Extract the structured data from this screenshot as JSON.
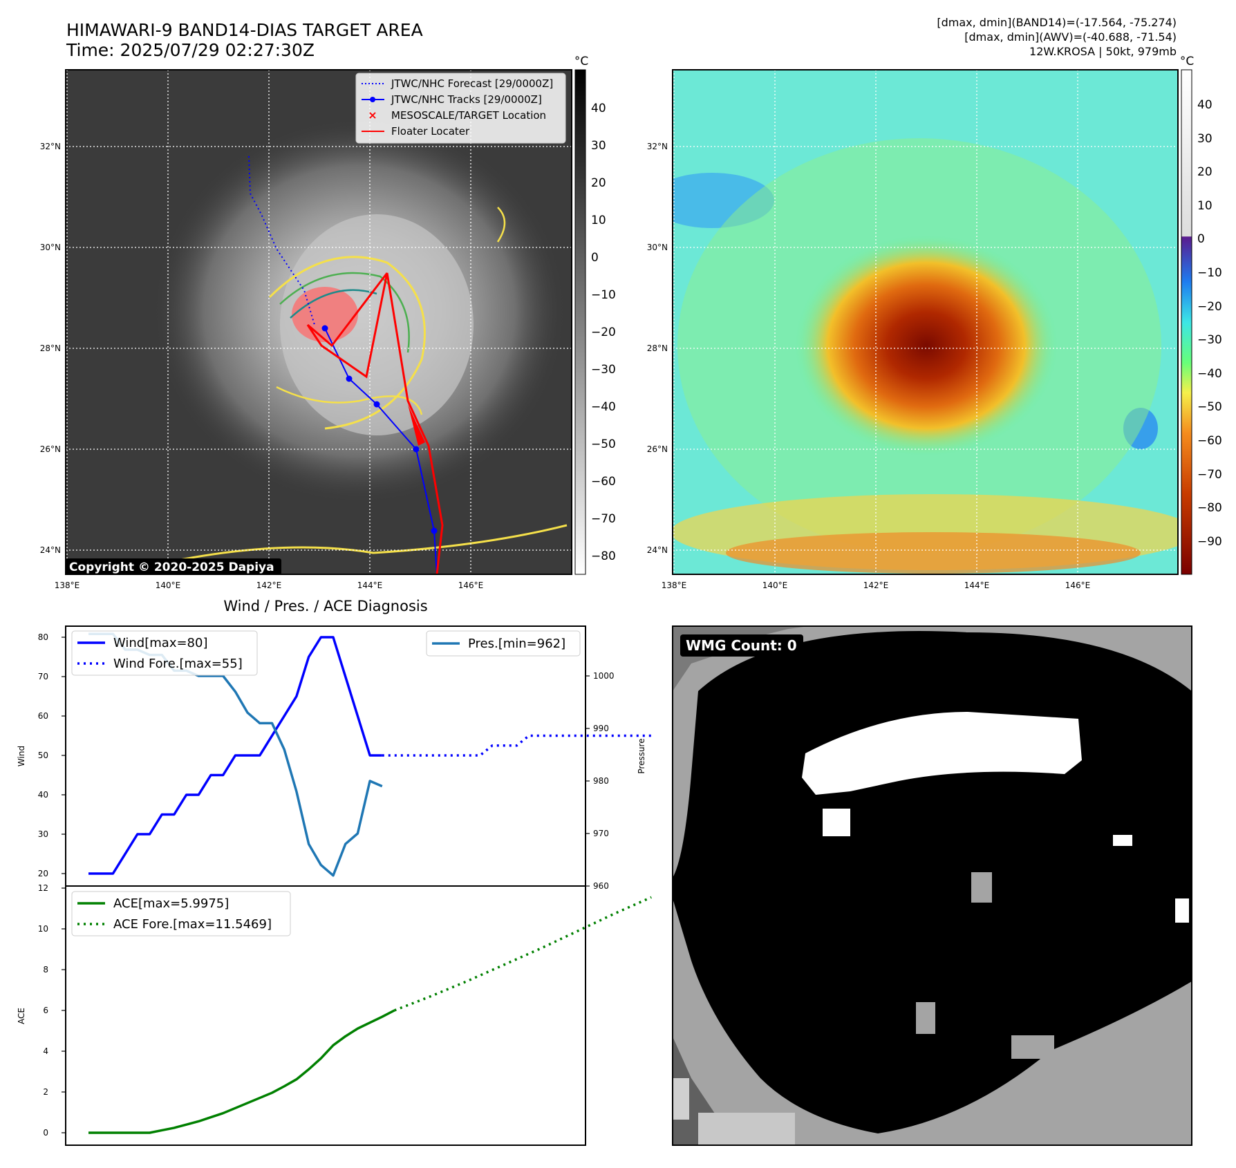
{
  "header": {
    "title_line1": "HIMAWARI-9 BAND14-DIAS TARGET AREA",
    "title_line2": "Time: 2025/07/29 02:27:30Z",
    "stats_line1": "[dmax, dmin](BAND14)=(-17.564, -75.274)",
    "stats_line2": "[dmax, dmin](AWV)=(-40.688, -71.54)",
    "stats_line3": "12W.KROSA | 50kt, 979mb"
  },
  "copyright": "Copyright © 2020-2025 Dapiya",
  "colorbar_unit": "°C",
  "map": {
    "lon_ticks": [
      "138°E",
      "140°E",
      "142°E",
      "144°E",
      "146°E"
    ],
    "lat_ticks": [
      "32°N",
      "30°N",
      "28°N",
      "26°N",
      "24°N"
    ],
    "colorbar_left_ticks": [
      "40",
      "30",
      "20",
      "10",
      "0",
      "−10",
      "−20",
      "−30",
      "−40",
      "−50",
      "−60",
      "−70",
      "−80"
    ],
    "colorbar_right_ticks": [
      "40",
      "30",
      "20",
      "10",
      "0",
      "−10",
      "−20",
      "−30",
      "−40",
      "−50",
      "−60",
      "−70",
      "−80",
      "−90"
    ],
    "legend": [
      {
        "label": "JTWC/NHC Forecast [29/0000Z]",
        "style": "dotted",
        "color": "#0000ff"
      },
      {
        "label": "JTWC/NHC Tracks [29/0000Z]",
        "style": "line-dot",
        "color": "#0000ff"
      },
      {
        "label": "MESOSCALE/TARGET Location",
        "style": "x",
        "color": "#ff0000"
      },
      {
        "label": "Floater Locater",
        "style": "line",
        "color": "#ff0000"
      }
    ],
    "track_color": "#0000ff",
    "floater_color": "#ff0000"
  },
  "diagnosis": {
    "title": "Wind / Pres. / ACE Diagnosis",
    "wind_ylabel": "Wind",
    "pres_ylabel": "Pressure",
    "ace_ylabel": "ACE",
    "wind_ticks": [
      "80",
      "70",
      "60",
      "50",
      "40",
      "30",
      "20"
    ],
    "pres_ticks": [
      "1000",
      "990",
      "980",
      "970",
      "960"
    ],
    "ace_ticks": [
      "12",
      "10",
      "8",
      "6",
      "4",
      "2",
      "0"
    ],
    "legend_wind": "Wind[max=80]",
    "legend_wind_fore": "Wind Fore.[max=55]",
    "legend_pres": "Pres.[min=962]",
    "legend_ace": "ACE[max=5.9975]",
    "legend_ace_fore": "ACE Fore.[max=11.5469]",
    "wmg_label": "WMG Count: 0"
  },
  "chart_data": [
    {
      "type": "line",
      "name": "wind",
      "ylabel": "Wind",
      "ylim": [
        18,
        81
      ],
      "x": [
        0,
        1,
        2,
        3,
        4,
        5,
        6,
        7,
        8,
        9,
        10,
        11,
        12,
        13,
        14,
        15,
        16,
        17,
        18,
        19,
        20,
        21,
        22,
        23,
        24,
        25
      ],
      "series": [
        {
          "name": "Wind[max=80]",
          "color": "#0000ff",
          "style": "solid",
          "values": [
            20,
            20,
            20,
            25,
            30,
            30,
            35,
            35,
            40,
            40,
            45,
            45,
            50,
            50,
            50,
            55,
            60,
            65,
            75,
            80,
            80,
            70,
            60,
            50,
            50,
            null
          ]
        },
        {
          "name": "Wind Fore.[max=55]",
          "color": "#0000ff",
          "style": "dotted",
          "x": [
            24,
            27,
            32,
            33,
            35,
            36,
            38,
            40,
            44,
            46
          ],
          "values": [
            50,
            50,
            50,
            52.5,
            52.5,
            55,
            55,
            55,
            55,
            55
          ]
        }
      ]
    },
    {
      "type": "line",
      "name": "pressure",
      "ylabel": "Pressure",
      "ylim": [
        960,
        1010
      ],
      "series": [
        {
          "name": "Pres.[min=962]",
          "color": "#1f77b4",
          "style": "solid",
          "x": [
            0,
            1,
            2,
            3,
            4,
            5,
            6,
            7,
            8,
            9,
            10,
            11,
            12,
            13,
            14,
            15,
            16,
            17,
            18,
            19,
            20,
            21,
            22,
            23,
            24,
            25
          ],
          "values": [
            1008,
            1008,
            1008,
            1005,
            1005,
            1004,
            1004,
            1001,
            1001,
            1000,
            1000,
            1000,
            997,
            993,
            991,
            991,
            986,
            978,
            968,
            964,
            962,
            968,
            970,
            980,
            979,
            null
          ]
        }
      ]
    },
    {
      "type": "line",
      "name": "ace",
      "ylabel": "ACE",
      "ylim": [
        -0.3,
        12
      ],
      "series": [
        {
          "name": "ACE[max=5.9975]",
          "color": "#008000",
          "style": "solid",
          "x": [
            0,
            1,
            2,
            3,
            4,
            5,
            6,
            7,
            8,
            9,
            10,
            11,
            12,
            13,
            14,
            15,
            16,
            17,
            18,
            19,
            20,
            21,
            22,
            23,
            24,
            25
          ],
          "values": [
            0,
            0,
            0,
            0,
            0,
            0,
            0.12,
            0.24,
            0.4,
            0.56,
            0.76,
            0.96,
            1.21,
            1.46,
            1.71,
            1.96,
            2.28,
            2.62,
            3.11,
            3.65,
            4.29,
            4.73,
            5.11,
            5.4,
            5.69,
            6.0
          ]
        },
        {
          "name": "ACE Fore.[max=11.5469]",
          "color": "#008000",
          "style": "dotted",
          "x": [
            25,
            28,
            31,
            34,
            37,
            40,
            43,
            46
          ],
          "values": [
            6.0,
            6.7,
            7.45,
            8.25,
            9.05,
            9.9,
            10.75,
            11.55
          ]
        }
      ]
    }
  ]
}
